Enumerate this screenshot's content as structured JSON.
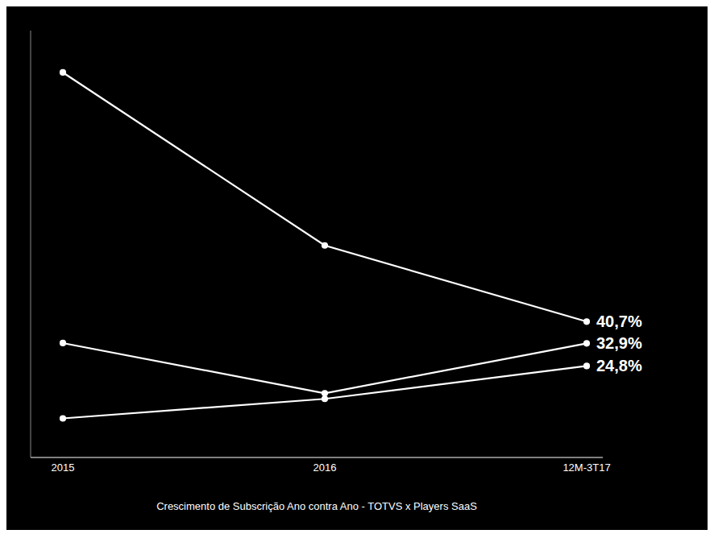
{
  "chart_data": {
    "type": "line",
    "categories": [
      "2015",
      "2016",
      "12M-3T17"
    ],
    "series": [
      {
        "color": "#ffffff",
        "marker": "circle",
        "values": [
          130,
          68,
          40.7
        ],
        "value_labels": [
          null,
          null,
          "40,7%"
        ]
      },
      {
        "color": "#ffffff",
        "marker": "circle",
        "values": [
          33,
          15,
          32.9
        ],
        "value_labels": [
          null,
          null,
          "32,9%"
        ]
      },
      {
        "color": "#ffffff",
        "marker": "circle",
        "values": [
          6,
          13,
          24.8
        ],
        "value_labels": [
          null,
          null,
          "24,8%"
        ]
      }
    ],
    "ylim": [
      -8,
      145
    ],
    "xlabel": "Crescimento de Subscrição Ano contra Ano - TOTVS x Players SaaS",
    "tick_labels": "x",
    "grid": false
  }
}
